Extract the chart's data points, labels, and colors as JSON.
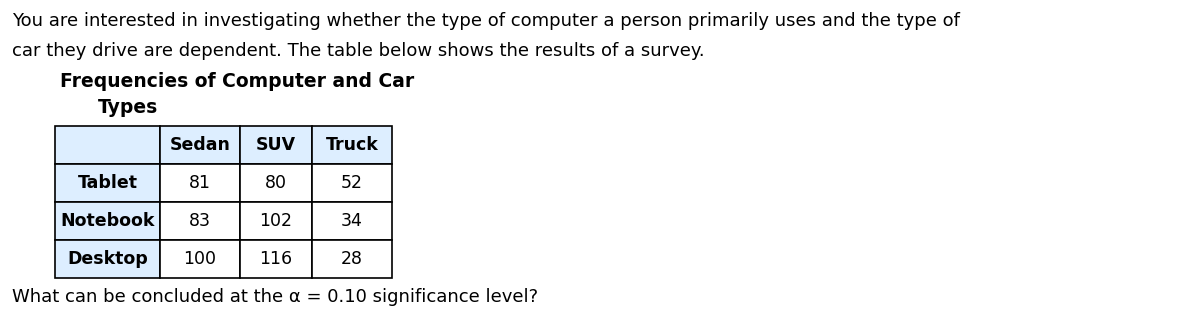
{
  "intro_text_line1": "You are interested in investigating whether the type of computer a person primarily uses and the type of",
  "intro_text_line2": "car they drive are dependent. The table below shows the results of a survey.",
  "table_title_line1": "Frequencies of Computer and Car",
  "table_title_line2": "Types",
  "col_headers": [
    "Sedan",
    "SUV",
    "Truck"
  ],
  "row_headers": [
    "Tablet",
    "Notebook",
    "Desktop"
  ],
  "table_data": [
    [
      81,
      80,
      52
    ],
    [
      83,
      102,
      34
    ],
    [
      100,
      116,
      28
    ]
  ],
  "conclusion_text": "What can be concluded at the α = 0.10 significance level?",
  "background_color": "#ffffff",
  "header_bg": "#ddeeff",
  "cell_bg": "#ffffff",
  "text_color": "#000000",
  "font_size_body": 13.0,
  "font_size_title": 13.5,
  "font_size_table": 12.5,
  "fig_width": 12.0,
  "fig_height": 3.36,
  "dpi": 100
}
